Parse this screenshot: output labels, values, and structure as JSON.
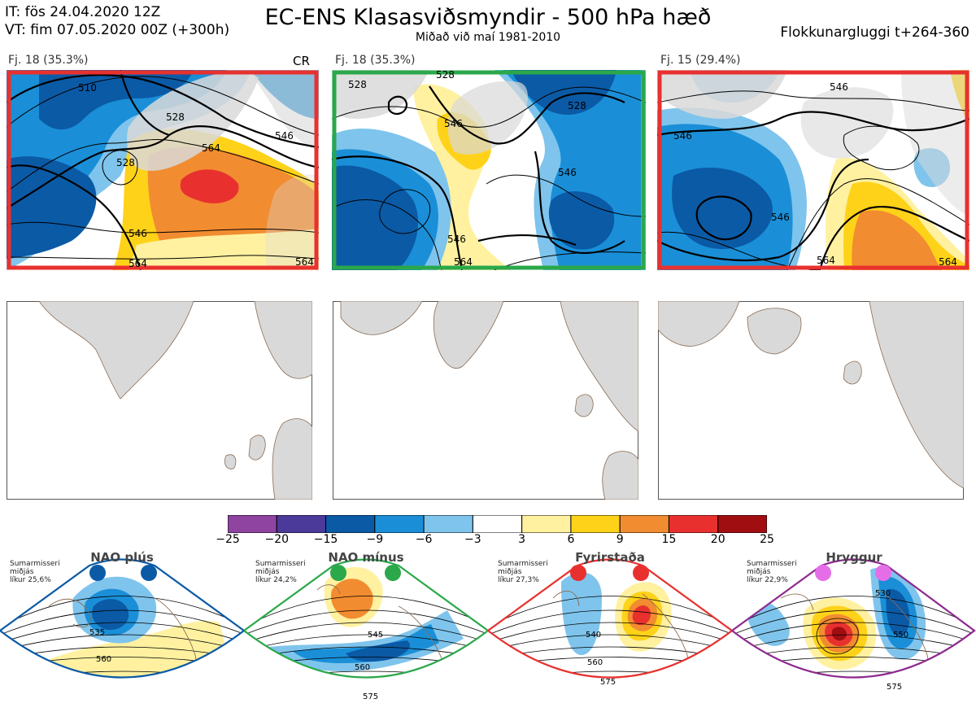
{
  "header": {
    "init_time": "IT: fös 24.04.2020 12Z",
    "valid_time": "VT: fim 07.05.2020 00Z  (+300h)",
    "title": "EC-ENS Klasasviðsmyndir - 500 hPa hæð",
    "subtitle": "Miðað við maí 1981-2010",
    "window": "Flokkunargluggi t+264-360"
  },
  "colors": {
    "land": "#d9d9d9",
    "coast": "#8a6d55",
    "contour": "#000000"
  },
  "panels": [
    {
      "label": "Fj. 18 (35.3%)",
      "tag": "CR",
      "border": "#e8312f",
      "contours": [
        "510",
        "528",
        "546",
        "564",
        "546",
        "564",
        "528",
        "546",
        "564"
      ]
    },
    {
      "label": "Fj. 18 (35.3%)",
      "tag": "",
      "border": "#2aa84a",
      "contours": [
        "528",
        "528",
        "546",
        "528",
        "546",
        "564",
        "546",
        "564"
      ]
    },
    {
      "label": "Fj. 15 (29.4%)",
      "tag": "",
      "border": "#e8312f",
      "contours": [
        "546",
        "546",
        "546",
        "564",
        "564"
      ]
    }
  ],
  "legend": {
    "colors": [
      "#8e44a0",
      "#4b3a9a",
      "#0b5aa6",
      "#1a8fd8",
      "#7fc4ec",
      "#ffffff",
      "#fff1a0",
      "#ffd21a",
      "#f28c30",
      "#e8312f",
      "#a10e12"
    ],
    "ticks": [
      "−25",
      "−20",
      "−15",
      "−9",
      "−6",
      "−3",
      "3",
      "6",
      "9",
      "15",
      "20",
      "25"
    ]
  },
  "regimes": [
    {
      "title": "NAO plús",
      "note": [
        "Sumarmisseri",
        "miðjás",
        "líkur 25,6%"
      ],
      "color": "#0b5aa6",
      "labels": [
        "535",
        "560"
      ]
    },
    {
      "title": "NAO mínus",
      "note": [
        "Sumarmisseri",
        "miðjás",
        "líkur 24,2%"
      ],
      "color": "#2aa84a",
      "labels": [
        "545",
        "560",
        "575"
      ]
    },
    {
      "title": "Fyrirstaða",
      "note": [
        "Sumarmisseri",
        "miðjás",
        "líkur 27,3%"
      ],
      "color": "#e8312f",
      "labels": [
        "540",
        "560",
        "575"
      ]
    },
    {
      "title": "Hryggur",
      "note": [
        "Sumarmisseri",
        "miðjás",
        "líkur 22,9%"
      ],
      "color": "#e56ee8",
      "border": "#8e2a90",
      "labels": [
        "530",
        "550",
        "575"
      ]
    }
  ]
}
